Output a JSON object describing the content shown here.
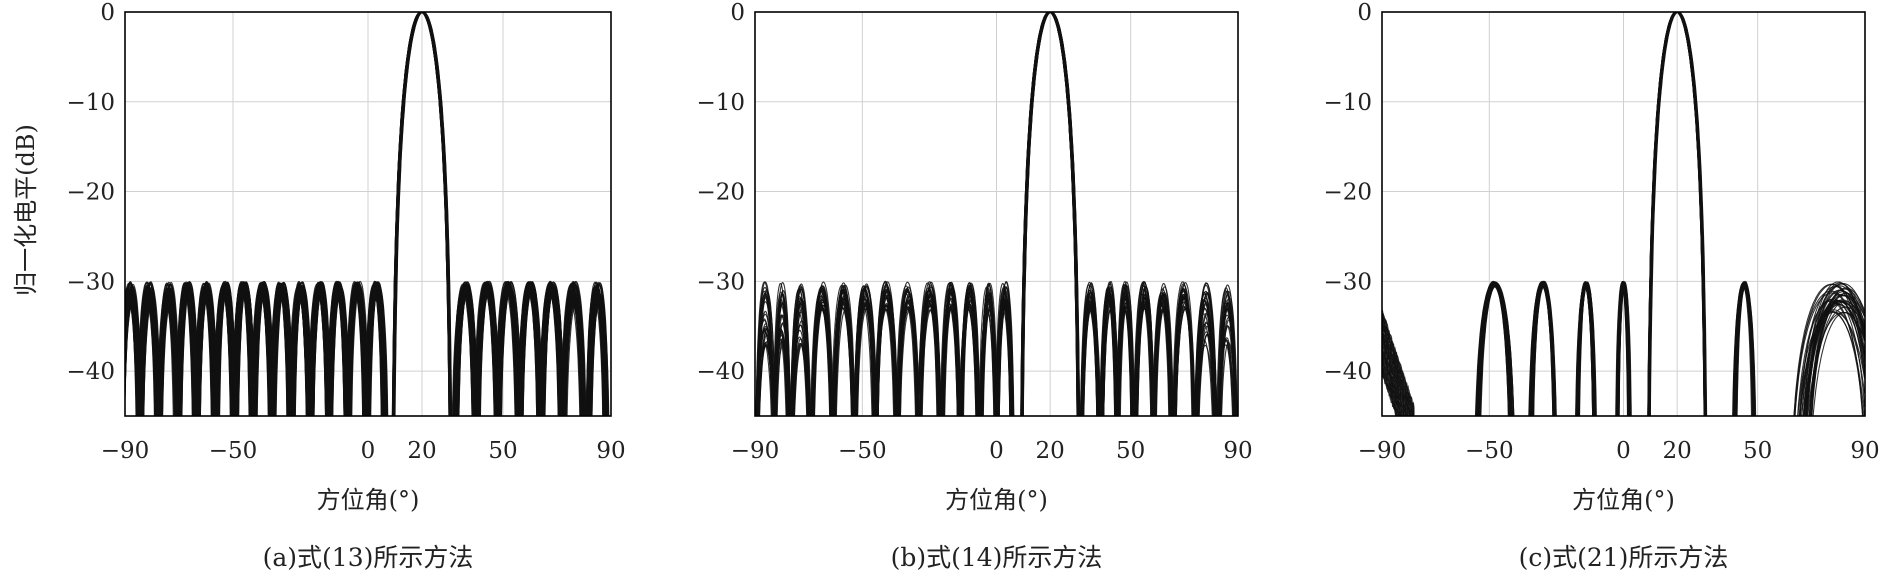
{
  "shared": {
    "ylabel": "归一化电平(dB)"
  },
  "chart_data": [
    {
      "type": "line",
      "caption": "(a)式(13)所示方法",
      "xlabel": "方位角(°)",
      "ylabel": "归一化电平(dB)",
      "xlim": [
        -90,
        90
      ],
      "ylim": [
        -45,
        0
      ],
      "xticks": [
        -90,
        -50,
        0,
        20,
        50,
        90
      ],
      "xtick_labels": [
        "−90",
        "−50",
        "0",
        "20",
        "50",
        "90"
      ],
      "yticks": [
        0,
        -10,
        -20,
        -30,
        -40
      ],
      "ytick_labels": [
        "0",
        "−10",
        "−20",
        "−30",
        "−40"
      ],
      "grid": true,
      "mainlobe_center": 20,
      "mainlobe_peak": 0,
      "null_to_null_width_deg": 22,
      "sidelobe_ceiling": -30,
      "sidelobe_region_left": [
        -90,
        9
      ],
      "sidelobe_region_right": [
        31,
        90
      ],
      "left_sidelobe_peaks": [
        -88,
        -81,
        -74,
        -67,
        -60,
        -53,
        -46,
        -39,
        -32,
        -25,
        -18,
        -11,
        -4,
        3
      ],
      "right_sidelobe_peaks": [
        36,
        44,
        52,
        60,
        68,
        76,
        85
      ],
      "ensemble_curves": 50
    },
    {
      "type": "line",
      "caption": "(b)式(14)所示方法",
      "xlabel": "方位角(°)",
      "ylabel": "",
      "xlim": [
        -90,
        90
      ],
      "ylim": [
        -45,
        0
      ],
      "xticks": [
        -90,
        -50,
        0,
        20,
        50,
        90
      ],
      "xtick_labels": [
        "−90",
        "−50",
        "0",
        "20",
        "50",
        "90"
      ],
      "yticks": [
        0,
        -10,
        -20,
        -30,
        -40
      ],
      "ytick_labels": [
        "0",
        "−10",
        "−20",
        "−30",
        "−40"
      ],
      "grid": true,
      "mainlobe_center": 20,
      "mainlobe_peak": 0,
      "null_to_null_width_deg": 22,
      "sidelobe_ceiling": -30,
      "left_sidelobe_peaks": [
        -86,
        -80,
        -73,
        -65,
        -57,
        -49,
        -41,
        -33,
        -25,
        -17,
        -10,
        -3,
        3
      ],
      "right_sidelobe_peaks": [
        35,
        42,
        48,
        55,
        62,
        70,
        78,
        86
      ],
      "ensemble_curves": 30
    },
    {
      "type": "line",
      "caption": "(c)式(21)所示方法",
      "xlabel": "方位角(°)",
      "ylabel": "",
      "xlim": [
        -90,
        90
      ],
      "ylim": [
        -45,
        0
      ],
      "xticks": [
        -90,
        -50,
        0,
        20,
        50,
        90
      ],
      "xtick_labels": [
        "−90",
        "−50",
        "0",
        "20",
        "50",
        "90"
      ],
      "yticks": [
        0,
        -10,
        -20,
        -30,
        -40
      ],
      "ytick_labels": [
        "0",
        "−10",
        "−20",
        "−30",
        "−40"
      ],
      "grid": true,
      "mainlobe_center": 20,
      "mainlobe_peak": 0,
      "null_to_null_width_deg": 22,
      "sidelobe_ceiling": -30,
      "sidelobe_peaks": [
        -48,
        -30,
        -14,
        0,
        45,
        80
      ],
      "sidelobe_widths": [
        14,
        10,
        7,
        5,
        8,
        30
      ],
      "edge_rise_left": -90,
      "ensemble_curves": 40
    }
  ]
}
